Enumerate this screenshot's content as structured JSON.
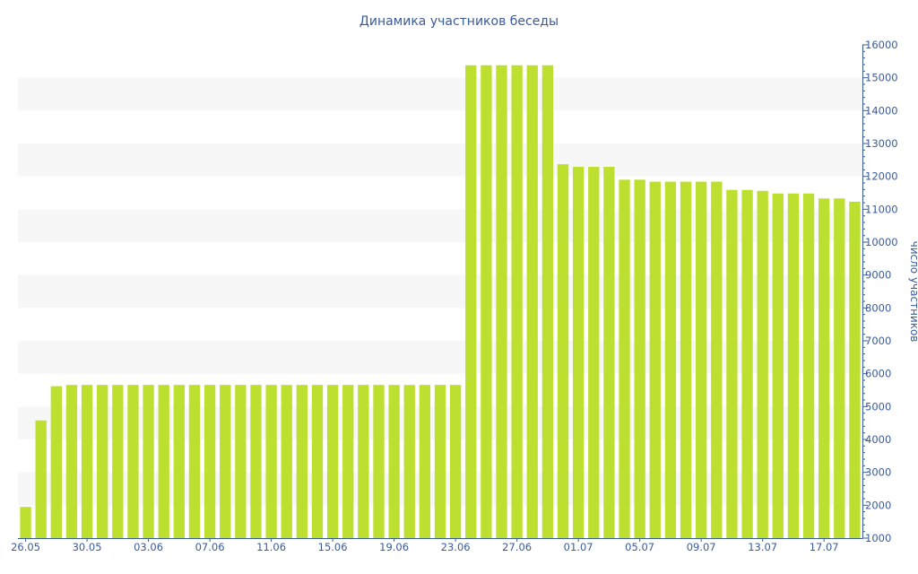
{
  "chart_data": {
    "type": "bar",
    "title": "Динамика участников беседы",
    "xlabel": "",
    "ylabel": "число участников",
    "ylim": [
      1000,
      16000
    ],
    "y_ticks": [
      1000,
      2000,
      3000,
      4000,
      5000,
      6000,
      7000,
      8000,
      9000,
      10000,
      11000,
      12000,
      13000,
      14000,
      15000,
      16000
    ],
    "x_tick_labels": [
      {
        "index": 0,
        "label": "26.05"
      },
      {
        "index": 4,
        "label": "30.05"
      },
      {
        "index": 8,
        "label": "03.06"
      },
      {
        "index": 12,
        "label": "07.06"
      },
      {
        "index": 16,
        "label": "11.06"
      },
      {
        "index": 20,
        "label": "15.06"
      },
      {
        "index": 24,
        "label": "19.06"
      },
      {
        "index": 28,
        "label": "23.06"
      },
      {
        "index": 32,
        "label": "27.06"
      },
      {
        "index": 36,
        "label": "01.07"
      },
      {
        "index": 40,
        "label": "05.07"
      },
      {
        "index": 44,
        "label": "09.07"
      },
      {
        "index": 48,
        "label": "13.07"
      },
      {
        "index": 52,
        "label": "17.07"
      }
    ],
    "categories": [
      "26.05",
      "27.05",
      "28.05",
      "29.05",
      "30.05",
      "31.05",
      "01.06",
      "02.06",
      "03.06",
      "04.06",
      "05.06",
      "06.06",
      "07.06",
      "08.06",
      "09.06",
      "10.06",
      "11.06",
      "12.06",
      "13.06",
      "14.06",
      "15.06",
      "16.06",
      "17.06",
      "18.06",
      "19.06",
      "20.06",
      "21.06",
      "22.06",
      "23.06",
      "24.06",
      "25.06",
      "26.06",
      "27.06",
      "28.06",
      "29.06",
      "30.06",
      "01.07",
      "02.07",
      "03.07",
      "04.07",
      "05.07",
      "06.07",
      "07.07",
      "08.07",
      "09.07",
      "10.07",
      "11.07",
      "12.07",
      "13.07",
      "14.07",
      "15.07",
      "16.07",
      "17.07",
      "18.07",
      "19.07"
    ],
    "values": [
      1950,
      4580,
      5620,
      5660,
      5660,
      5660,
      5660,
      5660,
      5660,
      5660,
      5660,
      5660,
      5660,
      5660,
      5660,
      5660,
      5660,
      5660,
      5660,
      5660,
      5660,
      5660,
      5660,
      5660,
      5660,
      5660,
      5660,
      5660,
      5660,
      15380,
      15380,
      15380,
      15380,
      15380,
      15380,
      12370,
      12290,
      12290,
      12290,
      11900,
      11900,
      11840,
      11840,
      11840,
      11840,
      11840,
      11590,
      11590,
      11560,
      11480,
      11480,
      11480,
      11330,
      11330,
      11230
    ],
    "bar_color": "#bde030",
    "band_color": "#f7f7f7",
    "axis_color": "#3a5b9a",
    "grid": "alternating horizontal bands",
    "y_axis_side": "right"
  }
}
